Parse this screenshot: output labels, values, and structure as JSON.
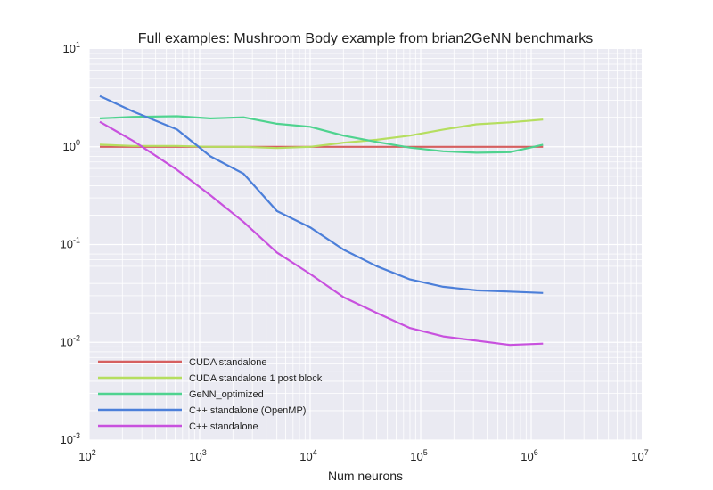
{
  "chart_data": {
    "type": "line",
    "title": "Full examples: Mushroom Body example from brian2GeNN benchmarks",
    "xlabel": "Num neurons",
    "ylabel": "",
    "xscale": "log",
    "yscale": "log",
    "xlim": [
      100,
      10000000
    ],
    "ylim": [
      0.001,
      10
    ],
    "grid": true,
    "legend_position": "lower-left",
    "x_ticks": [
      {
        "base": "10",
        "exp": "2"
      },
      {
        "base": "10",
        "exp": "3"
      },
      {
        "base": "10",
        "exp": "4"
      },
      {
        "base": "10",
        "exp": "5"
      },
      {
        "base": "10",
        "exp": "6"
      },
      {
        "base": "10",
        "exp": "7"
      }
    ],
    "y_ticks": [
      {
        "base": "10",
        "exp": "-3"
      },
      {
        "base": "10",
        "exp": "-2"
      },
      {
        "base": "10",
        "exp": "-1"
      },
      {
        "base": "10",
        "exp": "0"
      },
      {
        "base": "10",
        "exp": "1"
      }
    ],
    "x": [
      125,
      250,
      625,
      1250,
      2500,
      5000,
      10000,
      20000,
      40000,
      80000,
      160000,
      320000,
      640000,
      1280000
    ],
    "series": [
      {
        "name": "CUDA standalone",
        "color": "#d65f5f",
        "values": [
          1,
          1,
          1,
          1,
          1,
          1,
          1,
          1,
          1,
          1,
          1,
          1,
          1,
          1
        ]
      },
      {
        "name": "CUDA standalone 1 post block",
        "color": "#b5de5f",
        "values": [
          1.05,
          1.02,
          1.02,
          1.0,
          1.0,
          0.97,
          1.0,
          1.1,
          1.18,
          1.3,
          1.5,
          1.7,
          1.78,
          1.9
        ]
      },
      {
        "name": "GeNN_optimized",
        "color": "#4fd38f",
        "values": [
          1.95,
          2.02,
          2.05,
          1.95,
          2.0,
          1.72,
          1.6,
          1.3,
          1.12,
          0.98,
          0.9,
          0.87,
          0.88,
          1.05
        ]
      },
      {
        "name": "C++ standalone (OpenMP)",
        "color": "#4c7fd9",
        "values": [
          3.3,
          2.3,
          1.5,
          0.8,
          0.53,
          0.22,
          0.15,
          0.089,
          0.06,
          0.044,
          0.037,
          0.034,
          0.033,
          0.032
        ]
      },
      {
        "name": "C++ standalone",
        "color": "#c851de",
        "values": [
          1.8,
          1.15,
          0.58,
          0.32,
          0.17,
          0.083,
          0.05,
          0.029,
          0.02,
          0.014,
          0.0115,
          0.0104,
          0.0094,
          0.0097
        ]
      }
    ]
  }
}
